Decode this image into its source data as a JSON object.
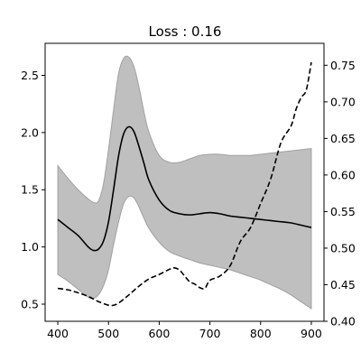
{
  "chart_data": {
    "type": "line",
    "title": "Loss : 0.16",
    "xlabel": "",
    "ylabel": "",
    "xlim": [
      375,
      925
    ],
    "ylim_left": [
      0.35,
      2.78
    ],
    "ylim_right": [
      0.4,
      0.78
    ],
    "x_ticks": [
      400,
      500,
      600,
      700,
      800,
      900
    ],
    "y_ticks_left": [
      0.5,
      1.0,
      1.5,
      2.0,
      2.5
    ],
    "y_ticks_right": [
      0.4,
      0.45,
      0.5,
      0.55,
      0.6,
      0.65,
      0.7,
      0.75
    ],
    "x_tick_labels": [
      "400",
      "500",
      "600",
      "700",
      "800",
      "900"
    ],
    "y_tick_labels_left": [
      "0.5",
      "1.0",
      "1.5",
      "2.0",
      "2.5"
    ],
    "y_tick_labels_right": [
      "0.40",
      "0.45",
      "0.50",
      "0.55",
      "0.60",
      "0.65",
      "0.70",
      "0.75"
    ],
    "grid": false,
    "colors": {
      "band_fill": "#bfbfbf",
      "band_edge": "#a0a0a0",
      "line": "#000000"
    },
    "series": [
      {
        "style": "solid",
        "axis": "left",
        "x": [
          400,
          420,
          440,
          460,
          470,
          480,
          490,
          500,
          510,
          520,
          530,
          540,
          550,
          560,
          570,
          580,
          600,
          620,
          640,
          660,
          680,
          700,
          720,
          740,
          760,
          780,
          800,
          820,
          840,
          860,
          880,
          900
        ],
        "y": [
          1.24,
          1.17,
          1.1,
          1.0,
          0.97,
          0.98,
          1.05,
          1.22,
          1.5,
          1.8,
          1.99,
          2.05,
          2.01,
          1.88,
          1.73,
          1.58,
          1.41,
          1.32,
          1.29,
          1.28,
          1.29,
          1.3,
          1.29,
          1.27,
          1.26,
          1.25,
          1.24,
          1.23,
          1.22,
          1.21,
          1.19,
          1.17
        ]
      },
      {
        "style": "band",
        "axis": "left",
        "x": [
          400,
          420,
          440,
          460,
          470,
          480,
          490,
          500,
          510,
          520,
          530,
          540,
          550,
          560,
          570,
          580,
          600,
          620,
          640,
          660,
          680,
          700,
          720,
          740,
          760,
          780,
          800,
          820,
          840,
          860,
          880,
          900
        ],
        "upper": [
          1.71,
          1.6,
          1.5,
          1.42,
          1.39,
          1.4,
          1.55,
          1.85,
          2.2,
          2.52,
          2.65,
          2.66,
          2.58,
          2.4,
          2.18,
          2.0,
          1.8,
          1.74,
          1.74,
          1.77,
          1.8,
          1.81,
          1.81,
          1.8,
          1.8,
          1.8,
          1.81,
          1.82,
          1.83,
          1.84,
          1.85,
          1.86
        ],
        "lower": [
          0.76,
          0.7,
          0.63,
          0.56,
          0.55,
          0.58,
          0.66,
          0.8,
          1.02,
          1.22,
          1.38,
          1.44,
          1.43,
          1.35,
          1.25,
          1.16,
          1.04,
          0.96,
          0.92,
          0.89,
          0.86,
          0.84,
          0.82,
          0.8,
          0.77,
          0.74,
          0.71,
          0.67,
          0.63,
          0.58,
          0.52,
          0.46
        ]
      },
      {
        "style": "dashed",
        "axis": "right",
        "x": [
          400,
          420,
          440,
          460,
          480,
          500,
          510,
          520,
          540,
          560,
          580,
          600,
          620,
          630,
          640,
          650,
          660,
          670,
          680,
          690,
          700,
          720,
          740,
          760,
          780,
          800,
          820,
          840,
          860,
          870,
          880,
          890,
          900
        ],
        "y": [
          0.445,
          0.443,
          0.439,
          0.434,
          0.427,
          0.422,
          0.422,
          0.425,
          0.436,
          0.448,
          0.458,
          0.464,
          0.471,
          0.473,
          0.47,
          0.462,
          0.454,
          0.451,
          0.446,
          0.445,
          0.456,
          0.462,
          0.476,
          0.509,
          0.528,
          0.561,
          0.595,
          0.644,
          0.667,
          0.69,
          0.706,
          0.716,
          0.754
        ]
      }
    ]
  }
}
